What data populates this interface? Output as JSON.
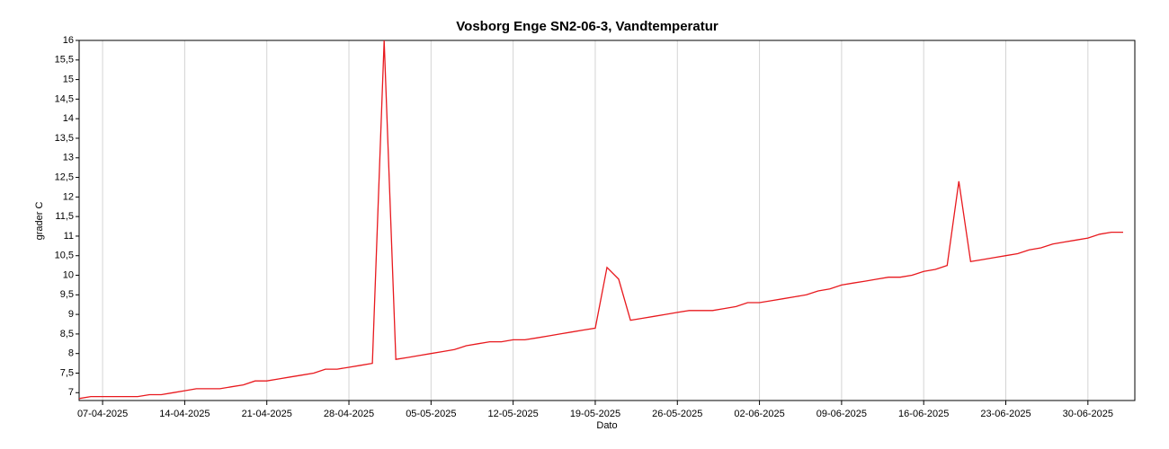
{
  "chart_data": {
    "type": "line",
    "title": "Vosborg Enge SN2-06-3, Vandtemperatur",
    "x_label": "Dato",
    "y_label": "grader C",
    "x": [
      "05-04-2025",
      "06-04-2025",
      "07-04-2025",
      "08-04-2025",
      "09-04-2025",
      "10-04-2025",
      "11-04-2025",
      "12-04-2025",
      "13-04-2025",
      "14-04-2025",
      "15-04-2025",
      "16-04-2025",
      "17-04-2025",
      "18-04-2025",
      "19-04-2025",
      "20-04-2025",
      "21-04-2025",
      "22-04-2025",
      "23-04-2025",
      "24-04-2025",
      "25-04-2025",
      "26-04-2025",
      "27-04-2025",
      "28-04-2025",
      "29-04-2025",
      "30-04-2025",
      "01-05-2025",
      "02-05-2025",
      "03-05-2025",
      "04-05-2025",
      "05-05-2025",
      "06-05-2025",
      "07-05-2025",
      "08-05-2025",
      "09-05-2025",
      "10-05-2025",
      "11-05-2025",
      "12-05-2025",
      "13-05-2025",
      "14-05-2025",
      "15-05-2025",
      "16-05-2025",
      "17-05-2025",
      "18-05-2025",
      "19-05-2025",
      "20-05-2025",
      "21-05-2025",
      "22-05-2025",
      "23-05-2025",
      "24-05-2025",
      "25-05-2025",
      "26-05-2025",
      "27-05-2025",
      "28-05-2025",
      "29-05-2025",
      "30-05-2025",
      "31-05-2025",
      "01-06-2025",
      "02-06-2025",
      "03-06-2025",
      "04-06-2025",
      "05-06-2025",
      "06-06-2025",
      "07-06-2025",
      "08-06-2025",
      "09-06-2025",
      "10-06-2025",
      "11-06-2025",
      "12-06-2025",
      "13-06-2025",
      "14-06-2025",
      "15-06-2025",
      "16-06-2025",
      "17-06-2025",
      "18-06-2025",
      "19-06-2025",
      "20-06-2025",
      "21-06-2025",
      "22-06-2025",
      "23-06-2025",
      "24-06-2025",
      "25-06-2025",
      "26-06-2025",
      "27-06-2025",
      "28-06-2025",
      "29-06-2025",
      "30-06-2025",
      "01-07-2025",
      "02-07-2025",
      "03-07-2025"
    ],
    "series": [
      {
        "name": "Vandtemperatur",
        "color": "#e8191e",
        "values": [
          6.85,
          6.9,
          6.9,
          6.9,
          6.9,
          6.9,
          6.95,
          6.95,
          7.0,
          7.05,
          7.1,
          7.1,
          7.1,
          7.15,
          7.2,
          7.3,
          7.3,
          7.35,
          7.4,
          7.45,
          7.5,
          7.6,
          7.6,
          7.65,
          7.7,
          7.75,
          16,
          7.85,
          7.9,
          7.95,
          8.0,
          8.05,
          8.1,
          8.2,
          8.25,
          8.3,
          8.3,
          8.35,
          8.35,
          8.4,
          8.45,
          8.5,
          8.55,
          8.6,
          8.65,
          10.2,
          9.9,
          8.85,
          8.9,
          8.95,
          9.0,
          9.05,
          9.1,
          9.1,
          9.1,
          9.15,
          9.2,
          9.3,
          9.3,
          9.35,
          9.4,
          9.45,
          9.5,
          9.6,
          9.65,
          9.75,
          9.8,
          9.85,
          9.9,
          9.95,
          9.95,
          10.0,
          10.1,
          10.15,
          10.25,
          12.4,
          10.35,
          10.4,
          10.45,
          10.5,
          10.55,
          10.65,
          10.7,
          10.8,
          10.85,
          10.9,
          10.95,
          11.05,
          11.1,
          11.1
        ]
      }
    ],
    "xlim": [
      "05-04-2025",
      "04-07-2025"
    ],
    "xticks": [
      "07-04-2025",
      "14-04-2025",
      "21-04-2025",
      "28-04-2025",
      "05-05-2025",
      "12-05-2025",
      "19-05-2025",
      "26-05-2025",
      "02-06-2025",
      "09-06-2025",
      "16-06-2025",
      "23-06-2025",
      "30-06-2025"
    ],
    "ylim": [
      6.8,
      16
    ],
    "yticks": [
      7,
      {
        "value": 7.5,
        "label": "7,5"
      },
      8,
      {
        "value": 8.5,
        "label": "8,5"
      },
      9,
      {
        "value": 9.5,
        "label": "9,5"
      },
      10,
      {
        "value": 10.5,
        "label": "10,5"
      },
      11,
      {
        "value": 11.5,
        "label": "11,5"
      },
      12,
      {
        "value": 12.5,
        "label": "12,5"
      },
      13,
      {
        "value": 13.5,
        "label": "13,5"
      },
      14,
      {
        "value": 14.5,
        "label": "14,5"
      },
      15,
      {
        "value": 15.5,
        "label": "15,5"
      },
      16
    ],
    "grid": "x"
  }
}
